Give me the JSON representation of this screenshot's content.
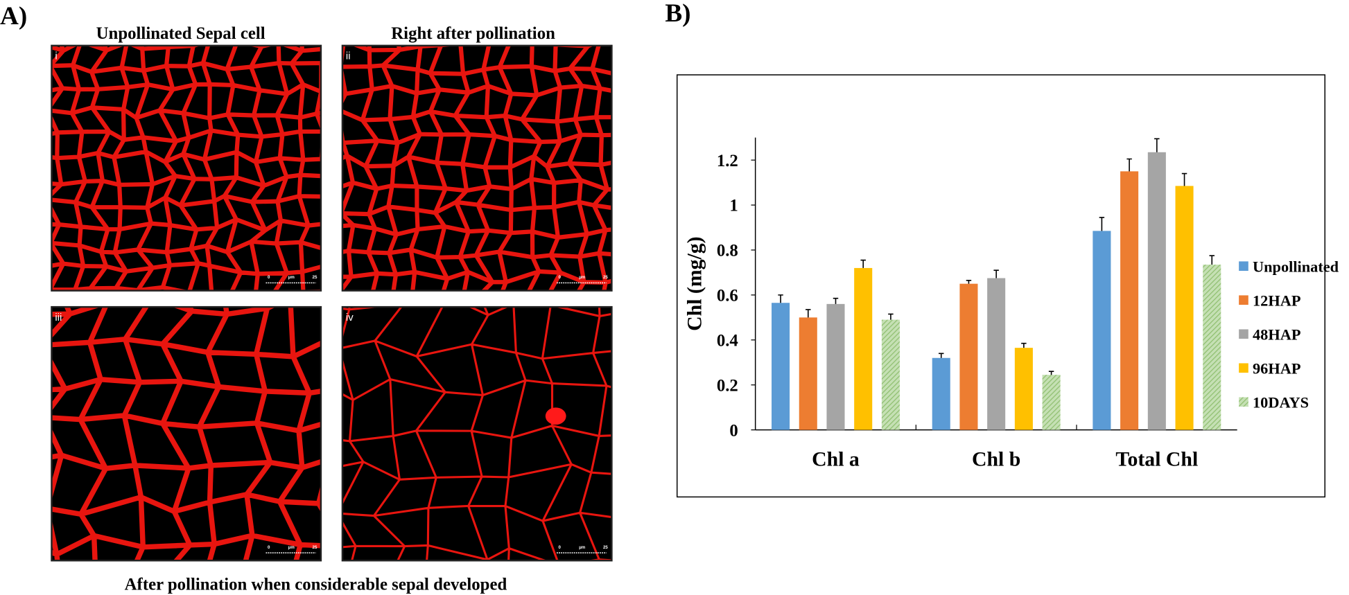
{
  "panel_a": {
    "label": "A)",
    "titles": [
      "Unpollinated Sepal cell",
      "Right after pollination"
    ],
    "images": [
      {
        "label": "i"
      },
      {
        "label": "ii"
      },
      {
        "label": "iii"
      },
      {
        "label": "iv"
      }
    ],
    "scale_bar": [
      "0",
      "µm",
      "25"
    ],
    "caption": "After pollination when considerable sepal developed"
  },
  "panel_b": {
    "label": "B)"
  },
  "chart_data": {
    "type": "bar",
    "y_label": "Chl (mg/g)",
    "categories": [
      "Chl a",
      "Chl b",
      "Total Chl"
    ],
    "series": [
      {
        "name": "Unpollinated",
        "color": "#5b9bd5",
        "values": [
          0.565,
          0.32,
          0.885
        ],
        "errors": [
          0.035,
          0.02,
          0.06
        ]
      },
      {
        "name": "12HAP",
        "color": "#ed7d31",
        "values": [
          0.5,
          0.65,
          1.15
        ],
        "errors": [
          0.035,
          0.015,
          0.055
        ]
      },
      {
        "name": "48HAP",
        "color": "#a5a5a5",
        "values": [
          0.56,
          0.675,
          1.235
        ],
        "errors": [
          0.025,
          0.035,
          0.06
        ]
      },
      {
        "name": "96HAP",
        "color": "#ffc000",
        "values": [
          0.72,
          0.365,
          1.085
        ],
        "errors": [
          0.035,
          0.02,
          0.055
        ]
      },
      {
        "name": "10DAYS",
        "color": "#a9d18e",
        "values": [
          0.49,
          0.245,
          0.735
        ],
        "errors": [
          0.025,
          0.015,
          0.04
        ]
      }
    ],
    "ylim": [
      0,
      1.3
    ],
    "yticks": [
      0,
      0.2,
      0.4,
      0.6,
      0.8,
      1,
      1.2
    ],
    "legend": "right"
  }
}
